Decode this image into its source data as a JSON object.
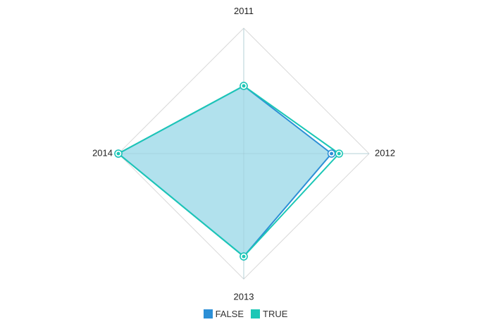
{
  "chart_data": {
    "type": "radar",
    "categories": [
      "2011",
      "2012",
      "2013",
      "2014"
    ],
    "series": [
      {
        "name": "FALSE",
        "values": [
          54,
          70,
          82,
          100
        ],
        "color": "#2c8fd6"
      },
      {
        "name": "TRUE",
        "values": [
          54,
          76,
          82,
          100
        ],
        "color": "#1cc7b6"
      }
    ],
    "rlim": [
      0,
      100
    ],
    "fill_color": "#addfec",
    "grid": true,
    "legend_position": "bottom"
  }
}
